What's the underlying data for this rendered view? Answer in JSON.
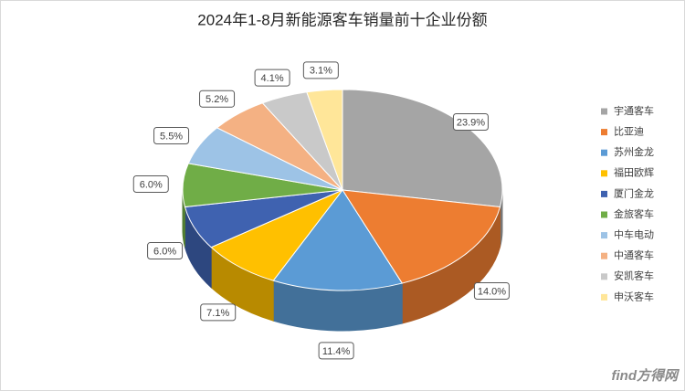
{
  "chart_data": {
    "type": "pie",
    "title": "2024年1-8月新能源客车销量前十企业份额",
    "categories": [
      "宇通客车",
      "比亚迪",
      "苏州金龙",
      "福田欧辉",
      "厦门金龙",
      "金旅客车",
      "中车电动",
      "中通客车",
      "安凯客车",
      "申沃客车"
    ],
    "values": [
      23.9,
      14.0,
      11.4,
      7.1,
      6.0,
      6.0,
      5.5,
      5.2,
      4.1,
      3.1
    ],
    "value_labels": [
      "23.9%",
      "14.0%",
      "11.4%",
      "7.1%",
      "6.0%",
      "6.0%",
      "5.5%",
      "5.2%",
      "4.1%",
      "3.1%"
    ],
    "colors": [
      "#a5a5a5",
      "#ed7d31",
      "#5b9bd5",
      "#ffc000",
      "#3f62b0",
      "#70ad47",
      "#9dc3e6",
      "#f4b183",
      "#c9c9c9",
      "#ffe699"
    ],
    "legend": "right",
    "watermark": "find方得网"
  }
}
